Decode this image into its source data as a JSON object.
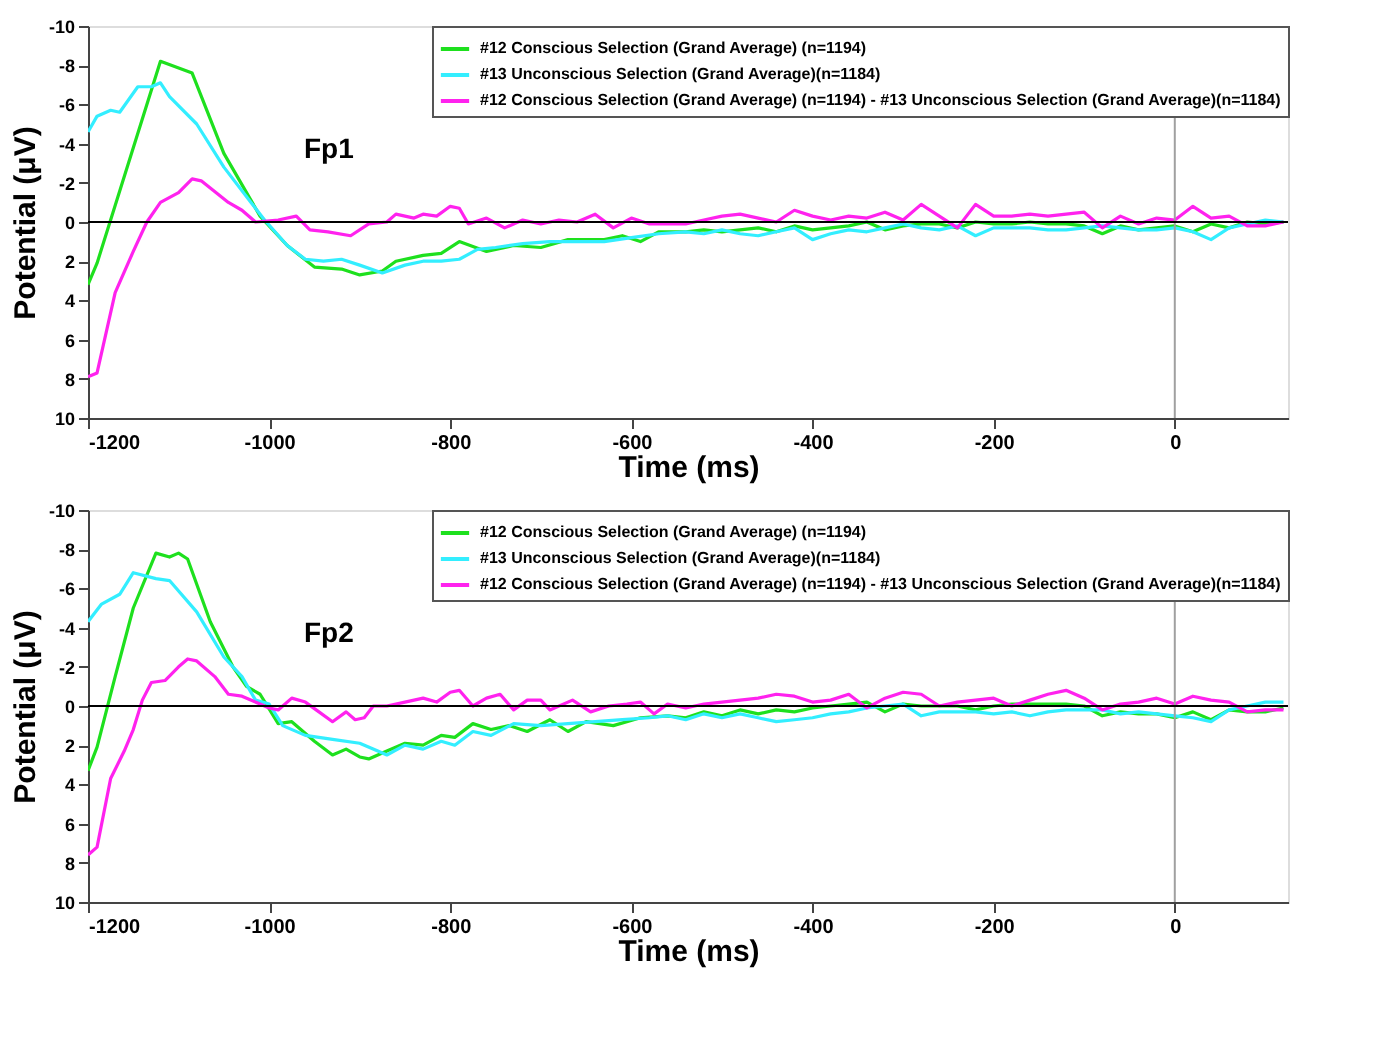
{
  "chart_data": [
    {
      "type": "line",
      "annotations": [
        "Fp1"
      ],
      "xlabel": "Time (ms)",
      "ylabel": "Potential (μV)",
      "xlim": [
        -1200,
        125
      ],
      "xticks": [
        -1200,
        -1000,
        -800,
        -600,
        -400,
        -200,
        0
      ],
      "ylim": [
        10,
        -10
      ],
      "yticks": [
        -10,
        -8,
        -6,
        -4,
        -2,
        0,
        2,
        4,
        6,
        8,
        10
      ],
      "grid": false,
      "legend": "top right",
      "line_style": "solid",
      "ref_lines": [
        {
          "axis": "x",
          "value": 0,
          "color": "#a0a0a0"
        },
        {
          "axis": "y",
          "value": 0,
          "color": "#000000"
        }
      ],
      "series": [
        {
          "name": "#12 Conscious Selection (Grand Average) (n=1194)",
          "color": "#1ee01e",
          "x": [
            -1200,
            -1190,
            -1120,
            -1085,
            -1050,
            -1010,
            -980,
            -950,
            -920,
            -900,
            -875,
            -860,
            -830,
            -810,
            -790,
            -760,
            -730,
            -700,
            -670,
            -630,
            -610,
            -590,
            -570,
            -540,
            -520,
            -500,
            -480,
            -460,
            -440,
            -420,
            -400,
            -380,
            -360,
            -340,
            -320,
            -300,
            -280,
            -260,
            -240,
            -220,
            -200,
            -180,
            -160,
            -140,
            -120,
            -100,
            -80,
            -60,
            -40,
            -20,
            0,
            20,
            40,
            60,
            80,
            100,
            120
          ],
          "values": [
            3.2,
            2.1,
            -8.2,
            -7.6,
            -3.5,
            -0.3,
            1.2,
            2.3,
            2.4,
            2.7,
            2.5,
            2.0,
            1.7,
            1.6,
            1.0,
            1.5,
            1.2,
            1.3,
            0.9,
            0.9,
            0.7,
            1.0,
            0.5,
            0.5,
            0.4,
            0.5,
            0.4,
            0.3,
            0.5,
            0.2,
            0.4,
            0.3,
            0.2,
            0.0,
            0.4,
            0.2,
            0.1,
            0.1,
            0.3,
            0.0,
            0.1,
            0.1,
            0.0,
            0.1,
            0.1,
            0.2,
            0.6,
            0.2,
            0.4,
            0.3,
            0.2,
            0.5,
            0.1,
            0.3,
            0.0,
            0.1,
            0.0
          ]
        },
        {
          "name": "#13 Unconscious Selection (Grand Average)(n=1184)",
          "color": "#33eeff",
          "x": [
            -1200,
            -1190,
            -1175,
            -1165,
            -1145,
            -1130,
            -1120,
            -1110,
            -1080,
            -1050,
            -1020,
            -1005,
            -980,
            -960,
            -940,
            -920,
            -900,
            -875,
            -850,
            -830,
            -810,
            -790,
            -770,
            -750,
            -720,
            -690,
            -660,
            -630,
            -600,
            -570,
            -540,
            -520,
            -500,
            -480,
            -460,
            -440,
            -420,
            -400,
            -380,
            -360,
            -340,
            -320,
            -300,
            -280,
            -260,
            -240,
            -220,
            -200,
            -180,
            -160,
            -140,
            -120,
            -100,
            -80,
            -60,
            -40,
            -20,
            0,
            20,
            40,
            60,
            80,
            100,
            120
          ],
          "values": [
            -4.6,
            -5.4,
            -5.7,
            -5.6,
            -6.9,
            -6.9,
            -7.1,
            -6.4,
            -5.0,
            -2.8,
            -1.0,
            -0.1,
            1.2,
            1.9,
            2.0,
            1.9,
            2.2,
            2.6,
            2.2,
            2.0,
            2.0,
            1.9,
            1.4,
            1.3,
            1.1,
            1.0,
            1.0,
            1.0,
            0.8,
            0.6,
            0.5,
            0.6,
            0.4,
            0.6,
            0.7,
            0.5,
            0.3,
            0.9,
            0.6,
            0.4,
            0.5,
            0.3,
            0.1,
            0.3,
            0.4,
            0.2,
            0.7,
            0.3,
            0.3,
            0.3,
            0.4,
            0.4,
            0.3,
            0.2,
            0.3,
            0.4,
            0.4,
            0.3,
            0.5,
            0.9,
            0.3,
            0.1,
            -0.1,
            0.0
          ]
        },
        {
          "name": "#12 Conscious Selection (Grand Average) (n=1194) - #13 Unconscious Selection (Grand Average)(n=1184)",
          "color": "#ff22ee",
          "x": [
            -1200,
            -1190,
            -1170,
            -1150,
            -1135,
            -1120,
            -1100,
            -1085,
            -1075,
            -1045,
            -1030,
            -1015,
            -990,
            -970,
            -955,
            -935,
            -910,
            -890,
            -870,
            -860,
            -840,
            -830,
            -815,
            -800,
            -790,
            -780,
            -760,
            -740,
            -720,
            -700,
            -680,
            -660,
            -640,
            -620,
            -600,
            -580,
            -540,
            -520,
            -500,
            -480,
            -460,
            -440,
            -420,
            -400,
            -380,
            -360,
            -340,
            -320,
            -300,
            -280,
            -260,
            -240,
            -220,
            -200,
            -180,
            -160,
            -140,
            -120,
            -100,
            -80,
            -60,
            -40,
            -20,
            0,
            20,
            40,
            60,
            80,
            100,
            120
          ],
          "values": [
            7.9,
            7.7,
            3.6,
            1.5,
            0.0,
            -1.0,
            -1.5,
            -2.2,
            -2.1,
            -1.0,
            -0.6,
            0.0,
            -0.1,
            -0.3,
            0.4,
            0.5,
            0.7,
            0.1,
            0.0,
            -0.4,
            -0.2,
            -0.4,
            -0.3,
            -0.8,
            -0.7,
            0.1,
            -0.2,
            0.3,
            -0.1,
            0.1,
            -0.1,
            0.0,
            -0.4,
            0.3,
            -0.2,
            0.1,
            0.1,
            -0.1,
            -0.3,
            -0.4,
            -0.2,
            0.0,
            -0.6,
            -0.3,
            -0.1,
            -0.3,
            -0.2,
            -0.5,
            -0.1,
            -0.9,
            -0.3,
            0.3,
            -0.9,
            -0.3,
            -0.3,
            -0.4,
            -0.3,
            -0.4,
            -0.5,
            0.3,
            -0.3,
            0.1,
            -0.2,
            -0.1,
            -0.8,
            -0.2,
            -0.3,
            0.2,
            0.2,
            0.0
          ]
        }
      ]
    },
    {
      "type": "line",
      "annotations": [
        "Fp2"
      ],
      "xlabel": "Time (ms)",
      "ylabel": "Potential (μV)",
      "xlim": [
        -1200,
        125
      ],
      "xticks": [
        -1200,
        -1000,
        -800,
        -600,
        -400,
        -200,
        0
      ],
      "ylim": [
        10,
        -10
      ],
      "yticks": [
        -10,
        -8,
        -6,
        -4,
        -2,
        0,
        2,
        4,
        6,
        8,
        10
      ],
      "grid": false,
      "legend": "top right",
      "line_style": "solid",
      "ref_lines": [
        {
          "axis": "x",
          "value": 0,
          "color": "#a0a0a0"
        },
        {
          "axis": "y",
          "value": 0,
          "color": "#000000"
        }
      ],
      "series": [
        {
          "name": "#12 Conscious Selection (Grand Average) (n=1194)",
          "color": "#1ee01e",
          "x": [
            -1200,
            -1190,
            -1170,
            -1150,
            -1125,
            -1110,
            -1100,
            -1090,
            -1065,
            -1040,
            -1025,
            -1010,
            -990,
            -975,
            -950,
            -930,
            -915,
            -900,
            -890,
            -870,
            -850,
            -830,
            -810,
            -795,
            -775,
            -755,
            -735,
            -715,
            -690,
            -670,
            -650,
            -620,
            -590,
            -560,
            -540,
            -520,
            -500,
            -480,
            -460,
            -440,
            -420,
            -400,
            -380,
            -360,
            -340,
            -320,
            -300,
            -280,
            -260,
            -240,
            -220,
            -200,
            -180,
            -160,
            -140,
            -120,
            -100,
            -80,
            -60,
            -40,
            -20,
            0,
            20,
            40,
            60,
            80,
            100,
            120
          ],
          "values": [
            3.3,
            2.1,
            -1.5,
            -5.0,
            -7.8,
            -7.6,
            -7.8,
            -7.5,
            -4.3,
            -2.0,
            -1.0,
            -0.6,
            0.9,
            0.8,
            1.8,
            2.5,
            2.2,
            2.6,
            2.7,
            2.3,
            1.9,
            2.0,
            1.5,
            1.6,
            0.9,
            1.2,
            1.0,
            1.3,
            0.7,
            1.3,
            0.8,
            1.0,
            0.6,
            0.5,
            0.6,
            0.3,
            0.5,
            0.2,
            0.4,
            0.2,
            0.3,
            0.1,
            0.0,
            -0.1,
            -0.2,
            0.3,
            -0.1,
            0.0,
            0.0,
            0.0,
            0.2,
            0.0,
            -0.1,
            -0.1,
            -0.1,
            -0.1,
            0.0,
            0.5,
            0.3,
            0.4,
            0.4,
            0.6,
            0.3,
            0.7,
            0.2,
            0.3,
            0.3,
            0.1
          ]
        },
        {
          "name": "#13 Unconscious Selection (Grand Average)(n=1184)",
          "color": "#33eeff",
          "x": [
            -1200,
            -1185,
            -1165,
            -1150,
            -1125,
            -1110,
            -1080,
            -1050,
            -1030,
            -1015,
            -1000,
            -985,
            -960,
            -930,
            -900,
            -880,
            -870,
            -850,
            -830,
            -810,
            -795,
            -775,
            -755,
            -730,
            -700,
            -670,
            -640,
            -610,
            -580,
            -560,
            -540,
            -520,
            -500,
            -480,
            -460,
            -440,
            -420,
            -400,
            -380,
            -360,
            -340,
            -320,
            -300,
            -280,
            -260,
            -240,
            -220,
            -200,
            -180,
            -160,
            -140,
            -120,
            -100,
            -80,
            -60,
            -40,
            -20,
            0,
            20,
            40,
            60,
            80,
            100,
            120
          ],
          "values": [
            -4.3,
            -5.2,
            -5.7,
            -6.8,
            -6.5,
            -6.4,
            -4.8,
            -2.5,
            -1.5,
            -0.3,
            -0.1,
            1.0,
            1.5,
            1.7,
            1.9,
            2.3,
            2.5,
            2.0,
            2.2,
            1.8,
            2.0,
            1.3,
            1.5,
            0.9,
            1.0,
            0.9,
            0.8,
            0.7,
            0.6,
            0.5,
            0.7,
            0.4,
            0.6,
            0.4,
            0.6,
            0.8,
            0.7,
            0.6,
            0.4,
            0.3,
            0.1,
            0.0,
            -0.1,
            0.5,
            0.3,
            0.3,
            0.3,
            0.4,
            0.3,
            0.5,
            0.3,
            0.2,
            0.2,
            0.2,
            0.4,
            0.3,
            0.4,
            0.5,
            0.6,
            0.8,
            0.2,
            0.0,
            -0.2,
            -0.2
          ]
        },
        {
          "name": "#12 Conscious Selection (Grand Average) (n=1194) - #13 Unconscious Selection (Grand Average)(n=1184)",
          "color": "#ff22ee",
          "x": [
            -1200,
            -1190,
            -1175,
            -1160,
            -1150,
            -1140,
            -1130,
            -1115,
            -1100,
            -1090,
            -1080,
            -1060,
            -1045,
            -1030,
            -1010,
            -1000,
            -990,
            -975,
            -960,
            -945,
            -930,
            -915,
            -905,
            -895,
            -885,
            -870,
            -850,
            -830,
            -815,
            -800,
            -790,
            -775,
            -760,
            -745,
            -730,
            -715,
            -700,
            -690,
            -665,
            -645,
            -625,
            -605,
            -590,
            -575,
            -560,
            -540,
            -520,
            -500,
            -480,
            -460,
            -440,
            -420,
            -400,
            -380,
            -360,
            -340,
            -320,
            -300,
            -280,
            -260,
            -240,
            -220,
            -200,
            -180,
            -160,
            -140,
            -120,
            -100,
            -80,
            -60,
            -40,
            -20,
            0,
            20,
            40,
            60,
            80,
            100,
            120
          ],
          "values": [
            7.6,
            7.2,
            3.7,
            2.3,
            1.2,
            -0.3,
            -1.2,
            -1.3,
            -2.0,
            -2.4,
            -2.3,
            -1.5,
            -0.6,
            -0.5,
            -0.1,
            0.1,
            0.2,
            -0.4,
            -0.2,
            0.3,
            0.8,
            0.3,
            0.7,
            0.6,
            0.0,
            0.0,
            -0.2,
            -0.4,
            -0.2,
            -0.7,
            -0.8,
            0.0,
            -0.4,
            -0.6,
            0.2,
            -0.3,
            -0.3,
            0.2,
            -0.3,
            0.3,
            0.0,
            -0.1,
            -0.2,
            0.4,
            -0.1,
            0.1,
            -0.1,
            -0.2,
            -0.3,
            -0.4,
            -0.6,
            -0.5,
            -0.2,
            -0.3,
            -0.6,
            0.1,
            -0.4,
            -0.7,
            -0.6,
            0.0,
            -0.2,
            -0.3,
            -0.4,
            0.0,
            -0.3,
            -0.6,
            -0.8,
            -0.4,
            0.2,
            -0.1,
            -0.2,
            -0.4,
            -0.1,
            -0.5,
            -0.3,
            -0.2,
            0.3,
            0.2,
            0.2
          ]
        }
      ]
    }
  ]
}
